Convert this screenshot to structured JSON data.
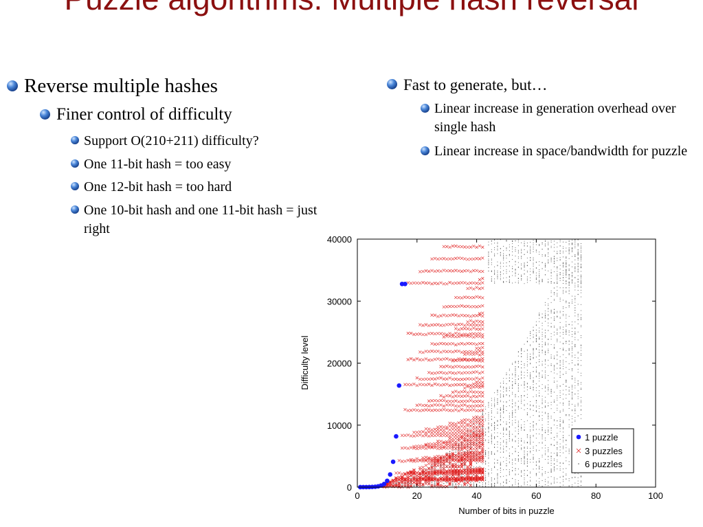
{
  "slide": {
    "title": "Puzzle algorithms: Multiple hash reversal",
    "left_bullets": [
      {
        "level": 1,
        "text": "Reverse multiple hashes"
      },
      {
        "level": 2,
        "text": "Finer control of difficulty"
      },
      {
        "level": 3,
        "text": "Support O(210+211) difficulty?"
      },
      {
        "level": 3,
        "text": "One 11-bit hash = too easy"
      },
      {
        "level": 3,
        "text": "One 12-bit hash = too hard"
      },
      {
        "level": 3,
        "text": "One 10-bit hash and one 11-bit hash = just right"
      }
    ],
    "right_bullets": [
      {
        "level": 1,
        "text": "Fast to generate, but…"
      },
      {
        "level": 2,
        "text": "Linear increase in generation overhead over single hash"
      },
      {
        "level": 2,
        "text": "Linear increase in space/bandwidth for puzzle"
      }
    ],
    "bullet_icon": "blue-sphere-icon"
  },
  "chart_data": {
    "type": "scatter",
    "xlabel": "Number of bits in puzzle",
    "ylabel": "Difficulty level",
    "xlim": [
      0,
      100
    ],
    "ylim": [
      0,
      40000
    ],
    "xticks": [
      "0",
      "20",
      "40",
      "60",
      "80",
      "100"
    ],
    "yticks": [
      "0",
      "10000",
      "20000",
      "30000",
      "40000"
    ],
    "legend_position": "bottom-right",
    "grid": false,
    "series": [
      {
        "name": "1 puzzle",
        "marker": "filled-circle",
        "color": "#1a1aff",
        "x": [
          1,
          2,
          3,
          4,
          5,
          6,
          7,
          8,
          9,
          10,
          11,
          12,
          13,
          14,
          15,
          16
        ],
        "y": [
          2,
          4,
          8,
          16,
          32,
          64,
          128,
          256,
          512,
          1024,
          2048,
          4096,
          8192,
          16384,
          32768,
          32768
        ]
      },
      {
        "name": "3 puzzles",
        "marker": "x",
        "color": "#e02020",
        "pattern": "clusters of points starting at each power of two and rising toward x≈42"
      },
      {
        "name": "6 puzzles",
        "marker": "dot",
        "color": "#555555",
        "pattern": "dense dots from x≈12 to x≈75 filling difficulty up to 40000"
      }
    ]
  }
}
